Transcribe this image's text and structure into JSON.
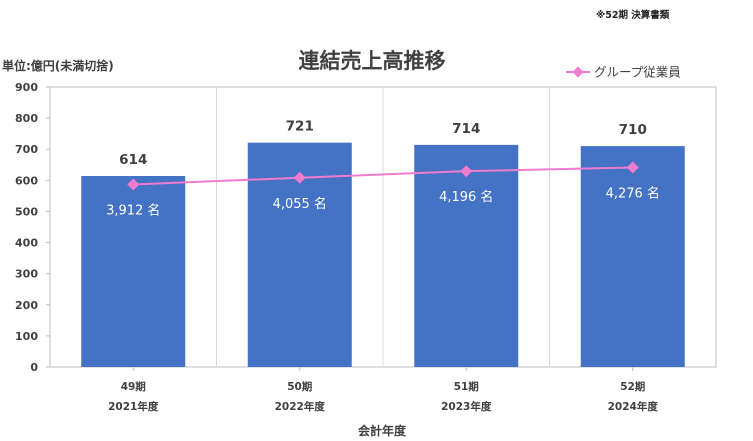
{
  "source_note": "※52期 決算書類",
  "chart_data": {
    "type": "bar",
    "title": "連結売上高推移",
    "ylabel": "単位:億円(未満切捨)",
    "xlabel": "会計年度",
    "ylim": [
      0,
      900
    ],
    "y_ticks": [
      "900",
      "800",
      "700",
      "600",
      "500",
      "400",
      "300",
      "200",
      "100",
      "0"
    ],
    "categories": [
      {
        "period": "49期",
        "year": "2021年度"
      },
      {
        "period": "50期",
        "year": "2022年度"
      },
      {
        "period": "51期",
        "year": "2023年度"
      },
      {
        "period": "52期",
        "year": "2024年度"
      }
    ],
    "values": [
      614,
      721,
      714,
      710
    ],
    "bar_labels": [
      "614",
      "721",
      "714",
      "710"
    ],
    "bar_color": "#4472C4",
    "line_series": {
      "name": "グループ従業員",
      "values": [
        3912,
        4055,
        4196,
        4276
      ],
      "labels": [
        "3,912 名",
        "4,055 名",
        "4,196 名",
        "4,276 名"
      ],
      "color": "#F07BCF",
      "marker": "diamond"
    },
    "grid": "vertical-separators",
    "legend": "top-right"
  }
}
